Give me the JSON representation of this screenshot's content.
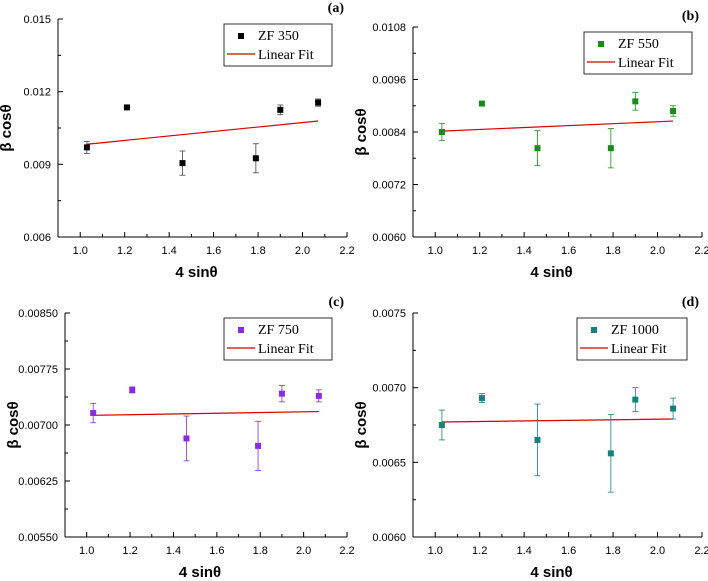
{
  "chart_data": [
    {
      "type": "scatter",
      "panel_label": "(a)",
      "xlabel": "4 sinθ",
      "ylabel": "β cosθ",
      "xlim": [
        0.9,
        2.2
      ],
      "ylim": [
        0.006,
        0.015
      ],
      "xticks": [
        1.0,
        1.2,
        1.4,
        1.6,
        1.8,
        2.0,
        2.2
      ],
      "yticks": [
        0.006,
        0.009,
        0.012,
        0.015
      ],
      "xtick_labels": [
        "1.0",
        "1.2",
        "1.4",
        "1.6",
        "1.8",
        "2.0",
        "2.2"
      ],
      "ytick_labels": [
        "0.006",
        "0.009",
        "0.012",
        "0.015"
      ],
      "series": [
        {
          "name": "ZF 350",
          "color": "#000000",
          "x": [
            1.03,
            1.21,
            1.46,
            1.79,
            1.9,
            2.07
          ],
          "y": [
            0.0097,
            0.01135,
            0.00905,
            0.00925,
            0.01125,
            0.01155
          ],
          "err": [
            0.00025,
            5e-05,
            0.0005,
            0.0006,
            0.0002,
            0.00015
          ]
        },
        {
          "name": "Linear Fit",
          "color": "#d40000",
          "x": [
            1.03,
            2.07
          ],
          "y": [
            0.00983,
            0.01079
          ]
        }
      ],
      "legend": [
        "ZF 350",
        "Linear Fit"
      ]
    },
    {
      "type": "scatter",
      "panel_label": "(b)",
      "xlabel": "4 sinθ",
      "ylabel": "β cosθ",
      "xlim": [
        0.9,
        2.2
      ],
      "ylim": [
        0.006,
        0.0108
      ],
      "xticks": [
        1.0,
        1.2,
        1.4,
        1.6,
        1.8,
        2.0,
        2.2
      ],
      "yticks": [
        0.006,
        0.0072,
        0.0084,
        0.0096,
        0.0108
      ],
      "xtick_labels": [
        "1.0",
        "1.2",
        "1.4",
        "1.6",
        "1.8",
        "2.0",
        "2.2"
      ],
      "ytick_labels": [
        "0.0060",
        "0.0072",
        "0.0084",
        "0.0096",
        "0.0108"
      ],
      "series": [
        {
          "name": "ZF 550",
          "color": "#1a8a1a",
          "x": [
            1.03,
            1.21,
            1.46,
            1.79,
            1.9,
            2.07
          ],
          "y": [
            0.0084,
            0.00905,
            0.00803,
            0.00803,
            0.0091,
            0.00888
          ],
          "err": [
            0.0002,
            4e-05,
            0.0004,
            0.00045,
            0.0002,
            0.00012
          ]
        },
        {
          "name": "Linear Fit",
          "color": "#d40000",
          "x": [
            1.03,
            2.07
          ],
          "y": [
            0.00842,
            0.00865
          ]
        }
      ],
      "legend": [
        "ZF 550",
        "Linear Fit"
      ]
    },
    {
      "type": "scatter",
      "panel_label": "(c)",
      "xlabel": "4 sinθ",
      "ylabel": "β cosθ",
      "xlim": [
        0.9,
        2.2
      ],
      "ylim": [
        0.0055,
        0.0085
      ],
      "xticks": [
        1.0,
        1.2,
        1.4,
        1.6,
        1.8,
        2.0,
        2.2
      ],
      "yticks": [
        0.0055,
        0.00625,
        0.007,
        0.00775,
        0.0085
      ],
      "xtick_labels": [
        "1.0",
        "1.2",
        "1.4",
        "1.6",
        "1.8",
        "2.0",
        "2.2"
      ],
      "ytick_labels": [
        "0.00550",
        "0.00625",
        "0.00700",
        "0.00775",
        "0.00850"
      ],
      "series": [
        {
          "name": "ZF 750",
          "color": "#8a2be2",
          "x": [
            1.03,
            1.21,
            1.46,
            1.79,
            1.9,
            2.07
          ],
          "y": [
            0.00716,
            0.00747,
            0.00682,
            0.00672,
            0.00742,
            0.00739
          ],
          "err": [
            0.00013,
            4e-05,
            0.0003,
            0.00033,
            0.00011,
            8e-05
          ]
        },
        {
          "name": "Linear Fit",
          "color": "#d40000",
          "x": [
            1.03,
            2.07
          ],
          "y": [
            0.00713,
            0.00718
          ]
        }
      ],
      "legend": [
        "ZF 750",
        "Linear Fit"
      ]
    },
    {
      "type": "scatter",
      "panel_label": "(d)",
      "xlabel": "4 sinθ",
      "ylabel": "β cosθ",
      "xlim": [
        0.9,
        2.2
      ],
      "ylim": [
        0.006,
        0.0075
      ],
      "xticks": [
        1.0,
        1.2,
        1.4,
        1.6,
        1.8,
        2.0,
        2.2
      ],
      "yticks": [
        0.006,
        0.0065,
        0.007,
        0.0075
      ],
      "xtick_labels": [
        "1.0",
        "1.2",
        "1.4",
        "1.6",
        "1.8",
        "2.0",
        "2.2"
      ],
      "ytick_labels": [
        "0.0060",
        "0.0065",
        "0.0070",
        "0.0075"
      ],
      "series": [
        {
          "name": "ZF 1000",
          "color": "#1a7f7f",
          "x": [
            1.03,
            1.21,
            1.46,
            1.79,
            1.9,
            2.07
          ],
          "y": [
            0.00675,
            0.00693,
            0.00665,
            0.00656,
            0.00692,
            0.00686
          ],
          "err": [
            0.0001,
            3e-05,
            0.00024,
            0.00026,
            8e-05,
            7e-05
          ]
        },
        {
          "name": "Linear Fit",
          "color": "#d40000",
          "x": [
            1.03,
            2.07
          ],
          "y": [
            0.00677,
            0.00679
          ]
        }
      ],
      "legend": [
        "ZF 1000",
        "Linear Fit"
      ]
    }
  ]
}
